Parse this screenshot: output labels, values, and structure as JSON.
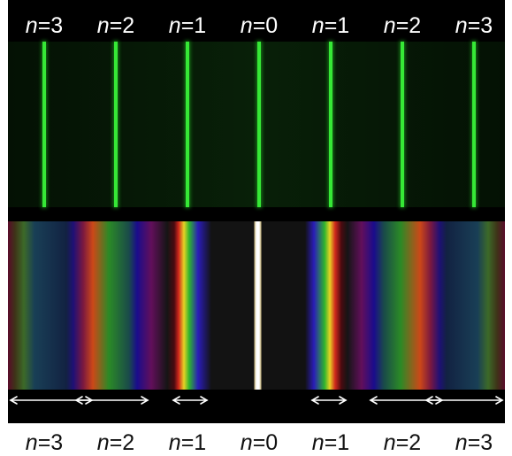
{
  "labels": {
    "top": [
      {
        "n": "n",
        "eq": "=3"
      },
      {
        "n": "n",
        "eq": "=2"
      },
      {
        "n": "n",
        "eq": "=1"
      },
      {
        "n": "n",
        "eq": "=0"
      },
      {
        "n": "n",
        "eq": "=1"
      },
      {
        "n": "n",
        "eq": "=2"
      },
      {
        "n": "n",
        "eq": "=3"
      }
    ],
    "bottom": [
      {
        "n": "n",
        "eq": "=3"
      },
      {
        "n": "n",
        "eq": "=2"
      },
      {
        "n": "n",
        "eq": "=1"
      },
      {
        "n": "n",
        "eq": "=0"
      },
      {
        "n": "n",
        "eq": "=1"
      },
      {
        "n": "n",
        "eq": "=2"
      },
      {
        "n": "n",
        "eq": "=3"
      }
    ]
  },
  "colors": {
    "background": "#000000",
    "monochromatic_line": "#36e836",
    "label_top": "#ffffff",
    "label_bottom": "#111111",
    "arrow": "#ffffff"
  }
}
